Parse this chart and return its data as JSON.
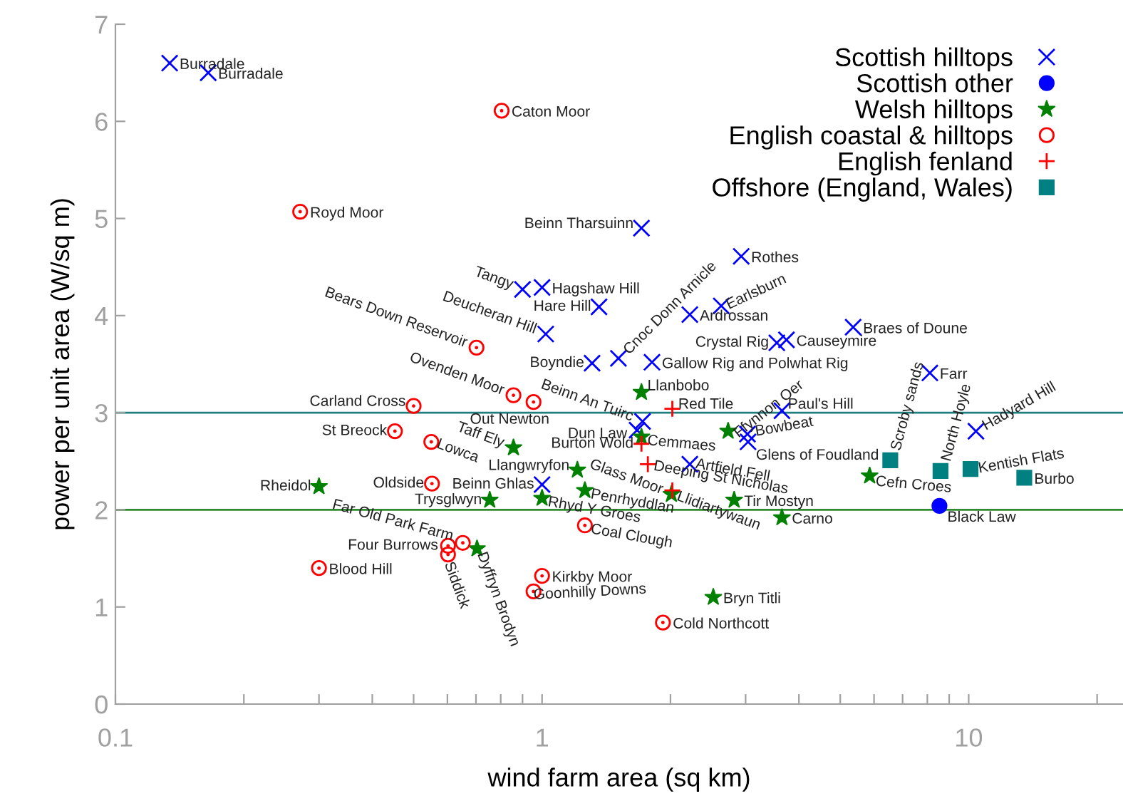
{
  "chart_data": {
    "type": "scatter",
    "xlabel": "wind farm area (sq km)",
    "ylabel": "power per unit area (W/sq m)",
    "log": "x",
    "xlim": [
      0.1,
      23
    ],
    "ylim": [
      0,
      7
    ],
    "xticks": [
      0.1,
      {
        "value": 0.2,
        "label": null
      },
      {
        "value": 0.3,
        "label": null
      },
      {
        "value": 0.4,
        "label": null
      },
      {
        "value": 0.5,
        "label": null
      },
      {
        "value": 0.6,
        "label": null
      },
      {
        "value": 0.7,
        "label": null
      },
      {
        "value": 0.8,
        "label": null
      },
      {
        "value": 0.9,
        "label": null
      },
      1,
      {
        "value": 2,
        "label": null
      },
      {
        "value": 3,
        "label": null
      },
      {
        "value": 4,
        "label": null
      },
      {
        "value": 5,
        "label": null
      },
      {
        "value": 6,
        "label": null
      },
      {
        "value": 7,
        "label": null
      },
      {
        "value": 8,
        "label": null
      },
      {
        "value": 9,
        "label": null
      },
      10,
      {
        "value": 20,
        "label": null
      }
    ],
    "yticks": [
      0,
      1,
      2,
      3,
      4,
      5,
      6,
      7
    ],
    "grid": false,
    "legend": "top right",
    "ref_lines": [
      {
        "axis": "y",
        "value": 3,
        "color": "#1f7f7f"
      },
      {
        "axis": "y",
        "value": 2,
        "color": "#2e8b2e"
      }
    ],
    "series": [
      {
        "name": "Scottish hilltops",
        "color": "#0000ff",
        "marker": "cross",
        "x": [
          0.134,
          0.165,
          1.71,
          0.9,
          1.0,
          1.36,
          1.02,
          2.93,
          2.63,
          2.22,
          5.36,
          3.55,
          3.74,
          1.51,
          1.31,
          1.81,
          8.11,
          3.65,
          10.4,
          1.72,
          1.67,
          3.03,
          3.04,
          2.22,
          1.0
        ],
        "values": [
          6.6,
          6.5,
          4.9,
          4.27,
          4.29,
          4.09,
          3.81,
          4.61,
          4.1,
          4.01,
          3.88,
          3.72,
          3.75,
          3.56,
          3.51,
          3.52,
          3.41,
          3.02,
          2.81,
          2.91,
          2.82,
          2.78,
          2.7,
          2.47,
          2.26
        ]
      },
      {
        "name": "Scottish other",
        "color": "#0000ff",
        "marker": "circle",
        "x": [
          8.54
        ],
        "values": [
          2.04
        ]
      },
      {
        "name": "Welsh hilltops",
        "color": "#008000",
        "marker": "star",
        "x": [
          0.3,
          0.857,
          0.754,
          0.704,
          1.21,
          1.0,
          1.26,
          1.71,
          1.71,
          2.73,
          2.01,
          2.82,
          3.65,
          5.86,
          2.52
        ],
        "values": [
          2.24,
          2.64,
          2.1,
          1.6,
          2.41,
          2.12,
          2.2,
          3.21,
          2.75,
          2.81,
          2.16,
          2.1,
          1.92,
          2.35,
          1.1
        ]
      },
      {
        "name": "English coastal & hilltops",
        "color": "#ff0000",
        "marker": "circle",
        "x": [
          0.804,
          0.271,
          0.702,
          0.857,
          0.955,
          0.5,
          0.452,
          0.55,
          0.552,
          0.652,
          0.602,
          0.602,
          0.3,
          1.0,
          0.955,
          1.26,
          1.92
        ],
        "values": [
          6.11,
          5.07,
          3.67,
          3.18,
          3.11,
          3.07,
          2.81,
          2.7,
          2.27,
          1.66,
          1.63,
          1.54,
          1.4,
          1.32,
          1.16,
          1.84,
          0.84
        ]
      },
      {
        "name": "English fenland",
        "color": "#ff0000",
        "marker": "plus",
        "x": [
          2.02,
          1.71,
          1.77,
          2.02
        ],
        "values": [
          3.04,
          2.68,
          2.47,
          2.2
        ]
      },
      {
        "name": "Offshore (England, Wales)",
        "color": "#008080",
        "marker": "square",
        "x": [
          6.55,
          8.59,
          10.1,
          13.5
        ],
        "values": [
          2.51,
          2.4,
          2.42,
          2.33
        ]
      }
    ],
    "annotations": [
      {
        "text": "Burradale",
        "x": 0.134,
        "y": 6.6
      },
      {
        "text": "Burradale",
        "x": 0.165,
        "y": 6.5
      },
      {
        "text": "Beinn Tharsuinn",
        "x": 1.71,
        "y": 4.9
      },
      {
        "text": "Tangy",
        "x": 0.9,
        "y": 4.27
      },
      {
        "text": "Hagshaw Hill",
        "x": 1.0,
        "y": 4.29
      },
      {
        "text": "Hare Hill",
        "x": 1.36,
        "y": 4.09
      },
      {
        "text": "Deucheran Hill",
        "x": 1.02,
        "y": 3.81
      },
      {
        "text": "Rothes",
        "x": 2.93,
        "y": 4.61
      },
      {
        "text": "Earlsburn",
        "x": 2.63,
        "y": 4.1
      },
      {
        "text": "Ardrossan",
        "x": 2.22,
        "y": 4.01
      },
      {
        "text": "Braes of Doune",
        "x": 5.36,
        "y": 3.88
      },
      {
        "text": "Crystal Rig",
        "x": 3.55,
        "y": 3.72
      },
      {
        "text": "Causeymire",
        "x": 3.74,
        "y": 3.75
      },
      {
        "text": "Cnoc Donn Arnicle",
        "x": 1.51,
        "y": 3.56
      },
      {
        "text": "Boyndie",
        "x": 1.31,
        "y": 3.51
      },
      {
        "text": "Gallow Rig and Polwhat Rig",
        "x": 1.81,
        "y": 3.52
      },
      {
        "text": "Farr",
        "x": 8.11,
        "y": 3.41
      },
      {
        "text": "Paul's Hill",
        "x": 3.65,
        "y": 3.02
      },
      {
        "text": "Hadyard Hill",
        "x": 10.4,
        "y": 2.81
      },
      {
        "text": "Beinn An Tuirc",
        "x": 1.72,
        "y": 2.91
      },
      {
        "text": "Dun Law",
        "x": 1.67,
        "y": 2.82
      },
      {
        "text": "Bowbeat",
        "x": 3.03,
        "y": 2.78
      },
      {
        "text": "Glens of Foudland",
        "x": 3.04,
        "y": 2.7
      },
      {
        "text": "Artfield Fell",
        "x": 2.22,
        "y": 2.47
      },
      {
        "text": "Beinn Ghlas",
        "x": 1.0,
        "y": 2.26
      },
      {
        "text": "Black Law",
        "x": 8.54,
        "y": 2.04
      },
      {
        "text": "Rheidol",
        "x": 0.3,
        "y": 2.24
      },
      {
        "text": "Taff Ely",
        "x": 0.857,
        "y": 2.64
      },
      {
        "text": "Trysglwyn",
        "x": 0.754,
        "y": 2.1
      },
      {
        "text": "Dyffryn Brodyn",
        "x": 0.704,
        "y": 1.6
      },
      {
        "text": "Llangwryfon",
        "x": 1.21,
        "y": 2.41
      },
      {
        "text": "Rhyd Y Groes",
        "x": 1.0,
        "y": 2.12
      },
      {
        "text": "Penrhyddlan",
        "x": 1.26,
        "y": 2.2
      },
      {
        "text": "Llanbobo",
        "x": 1.71,
        "y": 3.21
      },
      {
        "text": "Cemmaes",
        "x": 1.71,
        "y": 2.75
      },
      {
        "text": "Ffynnon Oer",
        "x": 2.73,
        "y": 2.81
      },
      {
        "text": "Llidiartywaun",
        "x": 2.01,
        "y": 2.16
      },
      {
        "text": "Tir Mostyn",
        "x": 2.82,
        "y": 2.1
      },
      {
        "text": "Carno",
        "x": 3.65,
        "y": 1.92
      },
      {
        "text": "Cefn Croes",
        "x": 5.86,
        "y": 2.35
      },
      {
        "text": "Bryn Titli",
        "x": 2.52,
        "y": 1.1
      },
      {
        "text": "Caton Moor",
        "x": 0.804,
        "y": 6.11
      },
      {
        "text": "Royd Moor",
        "x": 0.271,
        "y": 5.07
      },
      {
        "text": "Bears Down Reservoir",
        "x": 0.702,
        "y": 3.67
      },
      {
        "text": "Ovenden Moor",
        "x": 0.857,
        "y": 3.18
      },
      {
        "text": "Out Newton",
        "x": 0.955,
        "y": 3.11
      },
      {
        "text": "Carland Cross",
        "x": 0.5,
        "y": 3.07
      },
      {
        "text": "St Breock",
        "x": 0.452,
        "y": 2.81
      },
      {
        "text": "Lowca",
        "x": 0.55,
        "y": 2.7
      },
      {
        "text": "Oldside",
        "x": 0.552,
        "y": 2.27
      },
      {
        "text": "Far Old Park Farm",
        "x": 0.652,
        "y": 1.66
      },
      {
        "text": "Four Burrows",
        "x": 0.602,
        "y": 1.63
      },
      {
        "text": "Siddick",
        "x": 0.602,
        "y": 1.54
      },
      {
        "text": "Blood Hill",
        "x": 0.3,
        "y": 1.4
      },
      {
        "text": "Kirkby Moor",
        "x": 1.0,
        "y": 1.32
      },
      {
        "text": "Goonhilly Downs",
        "x": 0.955,
        "y": 1.16
      },
      {
        "text": "Coal Clough",
        "x": 1.26,
        "y": 1.84
      },
      {
        "text": "Cold Northcott",
        "x": 1.92,
        "y": 0.84
      },
      {
        "text": "Red Tile",
        "x": 2.02,
        "y": 3.04
      },
      {
        "text": "Burton Wold",
        "x": 1.71,
        "y": 2.68
      },
      {
        "text": "Deeping St Nicholas",
        "x": 1.77,
        "y": 2.47
      },
      {
        "text": "Glass Moor",
        "x": 2.02,
        "y": 2.2
      },
      {
        "text": "Scroby sands",
        "x": 6.55,
        "y": 2.51
      },
      {
        "text": "North Hoyle",
        "x": 8.59,
        "y": 2.4
      },
      {
        "text": "Kentish Flats",
        "x": 10.1,
        "y": 2.42
      },
      {
        "text": "Burbo",
        "x": 13.5,
        "y": 2.33
      }
    ]
  }
}
